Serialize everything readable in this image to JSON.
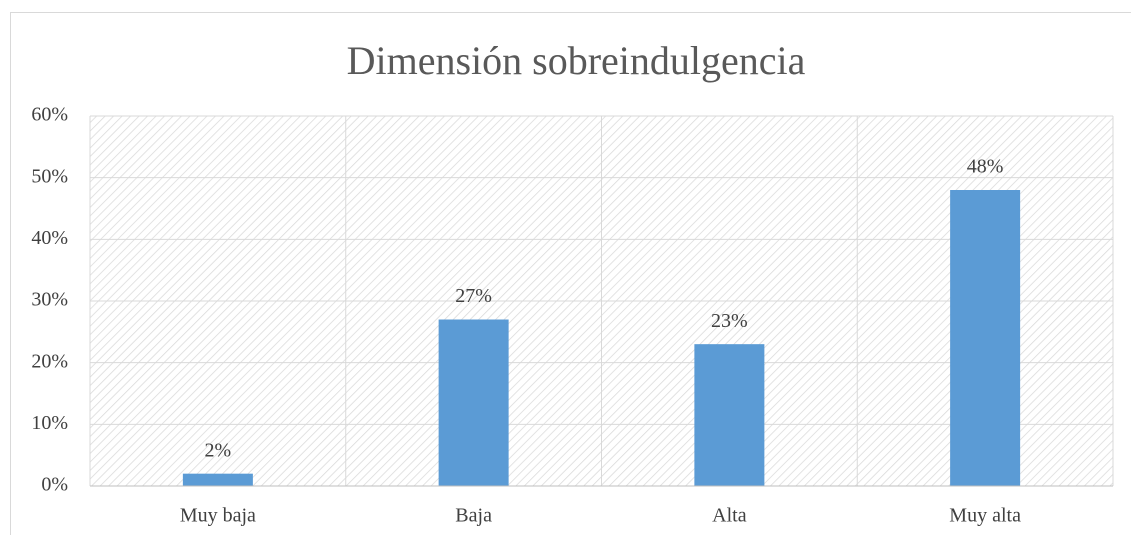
{
  "chart_data": {
    "type": "bar",
    "title": "Dimensión sobreindulgencia",
    "categories": [
      "Muy baja",
      "Baja",
      "Alta",
      "Muy alta"
    ],
    "values": [
      2,
      27,
      23,
      48
    ],
    "value_labels": [
      "2%",
      "27%",
      "23%",
      "48%"
    ],
    "color": "#5b9bd5",
    "ylim": [
      0,
      60
    ],
    "yticks": [
      {
        "value": 0,
        "label": "0%"
      },
      {
        "value": 10,
        "label": "10%"
      },
      {
        "value": 20,
        "label": "20%"
      },
      {
        "value": 30,
        "label": "30%"
      },
      {
        "value": 40,
        "label": "40%"
      },
      {
        "value": 50,
        "label": "50%"
      },
      {
        "value": 60,
        "label": "60%"
      }
    ],
    "grid": true
  }
}
